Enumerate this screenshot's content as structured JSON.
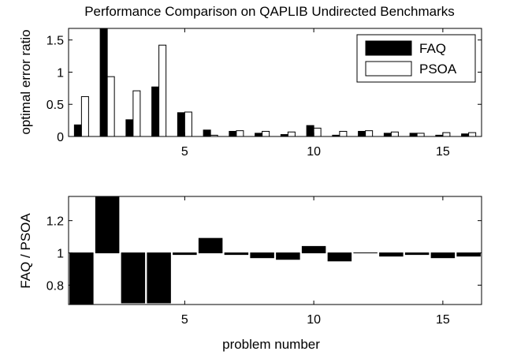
{
  "chart_data": [
    {
      "type": "bar",
      "title": "Performance Comparison on QAPLIB Undirected Benchmarks",
      "ylabel": "optimal error ratio",
      "xlabel": "",
      "xlim": [
        0.5,
        16.5
      ],
      "ylim": [
        0,
        1.68
      ],
      "xticks": [
        5,
        10,
        15
      ],
      "yticks": [
        0,
        0.5,
        1,
        1.5
      ],
      "legend": "top-right",
      "grid": false,
      "categories": [
        1,
        2,
        3,
        4,
        5,
        6,
        7,
        8,
        9,
        10,
        11,
        12,
        13,
        14,
        15,
        16
      ],
      "series": [
        {
          "name": "FAQ",
          "color": "#000000",
          "values": [
            0.18,
            1.68,
            0.26,
            0.77,
            0.37,
            0.1,
            0.08,
            0.05,
            0.03,
            0.17,
            0.02,
            0.08,
            0.05,
            0.05,
            0.02,
            0.04
          ]
        },
        {
          "name": "PSOA",
          "color": "#ffffff",
          "values": [
            0.62,
            0.93,
            0.71,
            1.42,
            0.38,
            0.02,
            0.09,
            0.08,
            0.07,
            0.13,
            0.08,
            0.09,
            0.07,
            0.05,
            0.06,
            0.06
          ]
        }
      ]
    },
    {
      "type": "bar",
      "title": "",
      "ylabel": "FAQ / PSOA",
      "xlabel": "problem number",
      "xlim": [
        0.5,
        16.5
      ],
      "ylim": [
        0.68,
        1.35
      ],
      "baseline": 1,
      "xticks": [
        5,
        10,
        15
      ],
      "yticks": [
        0.8,
        1,
        1.2
      ],
      "grid": false,
      "categories": [
        1,
        2,
        3,
        4,
        5,
        6,
        7,
        8,
        9,
        10,
        11,
        12,
        13,
        14,
        15,
        16
      ],
      "series": [
        {
          "color": "#000000",
          "values": [
            0.68,
            1.35,
            0.69,
            0.69,
            0.99,
            1.09,
            0.99,
            0.97,
            0.96,
            1.04,
            0.95,
            1.0,
            0.98,
            0.99,
            0.97,
            0.98
          ]
        }
      ]
    }
  ]
}
